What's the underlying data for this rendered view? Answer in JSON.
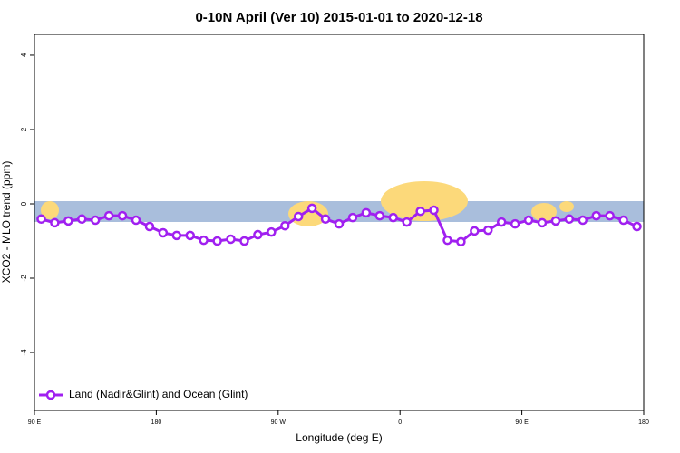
{
  "chart_data": {
    "type": "line",
    "title": "0-10N April (Ver 10)   2015-01-01 to 2020-12-18",
    "x_label": "Longitude (deg E)",
    "y_label": "XCO2 - MLO trend (ppm)",
    "x": [
      95,
      105,
      115,
      125,
      135,
      145,
      155,
      165,
      175,
      185,
      195,
      205,
      215,
      225,
      235,
      245,
      255,
      265,
      275,
      285,
      295,
      305,
      315,
      325,
      335,
      345,
      355,
      365,
      375,
      385,
      395,
      405,
      415,
      425,
      435,
      445,
      455,
      465,
      475,
      485,
      495,
      505,
      515,
      525,
      535
    ],
    "series": [
      {
        "name": "Land (Nadir&Glint) and Ocean (Glint)",
        "color": "#a020f0",
        "values": [
          -0.41,
          -0.51,
          -0.46,
          -0.41,
          -0.44,
          -0.32,
          -0.32,
          -0.44,
          -0.61,
          -0.78,
          -0.85,
          -0.85,
          -0.98,
          -1.0,
          -0.95,
          -1.0,
          -0.83,
          -0.76,
          -0.59,
          -0.34,
          -0.12,
          -0.41,
          -0.54,
          -0.37,
          -0.24,
          -0.32,
          -0.37,
          -0.49,
          -0.2,
          -0.17,
          -0.98,
          -1.02,
          -0.73,
          -0.71,
          -0.49,
          -0.54,
          -0.44,
          -0.51,
          -0.46,
          -0.41,
          -0.44,
          -0.32,
          -0.32,
          -0.44,
          -0.61
        ]
      }
    ],
    "xlim": [
      90,
      540
    ],
    "xticks": [
      {
        "value": 90,
        "label": "90 E"
      },
      {
        "value": 180,
        "label": "180"
      },
      {
        "value": 270,
        "label": "90 W"
      },
      {
        "value": 360,
        "label": "0"
      },
      {
        "value": 450,
        "label": "90 E"
      },
      {
        "value": 540,
        "label": "180"
      }
    ],
    "ylim": [
      -5.56,
      4.56
    ],
    "yticks": [
      -4,
      -2,
      0,
      2,
      4
    ],
    "legend": "bottom-left"
  }
}
